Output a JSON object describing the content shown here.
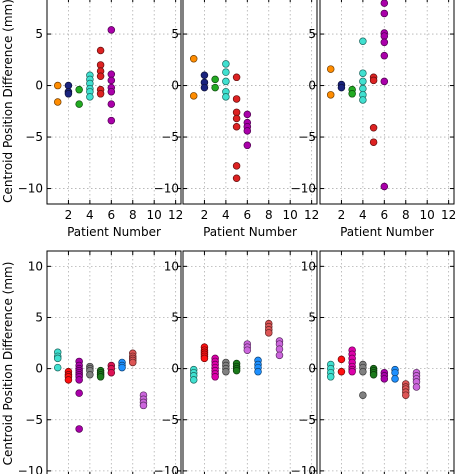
{
  "figure": {
    "ylabel": "Centroid Position Difference (mm)",
    "xlabel": "Patient Number"
  },
  "chart_data": [
    {
      "type": "scatter",
      "row": 0,
      "col": 0,
      "xlabel": "Patient Number",
      "ylabel": "Centroid Position Difference (mm)",
      "xlim": [
        0,
        12.5
      ],
      "ylim": [
        -11.5,
        8.5
      ],
      "xticks": [
        2,
        4,
        6,
        8,
        10,
        12
      ],
      "yticks": [
        -10,
        -5,
        0,
        5
      ],
      "grid": true,
      "series": [
        {
          "color": "#ff8c00",
          "x": [
            1,
            1
          ],
          "y": [
            0.0,
            -1.6
          ]
        },
        {
          "color": "#1a237e",
          "x": [
            2,
            2,
            2
          ],
          "y": [
            0.0,
            -0.6,
            -0.8
          ]
        },
        {
          "color": "#22aa22",
          "x": [
            3,
            3
          ],
          "y": [
            -0.4,
            -1.8
          ]
        },
        {
          "color": "#40e0d0",
          "x": [
            4,
            4,
            4,
            4,
            4,
            4
          ],
          "y": [
            1.0,
            0.6,
            0.2,
            -0.3,
            -0.6,
            -1.1
          ]
        },
        {
          "color": "#dd2222",
          "x": [
            5,
            5,
            5,
            5,
            5,
            5
          ],
          "y": [
            3.4,
            2.0,
            1.4,
            0.9,
            -0.4,
            -0.8
          ]
        },
        {
          "color": "#aa00aa",
          "x": [
            6,
            6,
            6,
            6,
            6,
            6,
            6
          ],
          "y": [
            5.4,
            1.1,
            0.5,
            -0.2,
            -0.6,
            -1.8,
            -3.4
          ]
        }
      ]
    },
    {
      "type": "scatter",
      "row": 0,
      "col": 1,
      "xlabel": "Patient Number",
      "xlim": [
        0,
        12.5
      ],
      "ylim": [
        -11.5,
        8.5
      ],
      "xticks": [
        2,
        4,
        6,
        8,
        10,
        12
      ],
      "yticks": [
        -10,
        -5,
        0,
        5
      ],
      "grid": true,
      "series": [
        {
          "color": "#ff8c00",
          "x": [
            1,
            1
          ],
          "y": [
            2.6,
            -1.0
          ]
        },
        {
          "color": "#1a237e",
          "x": [
            2,
            2,
            2
          ],
          "y": [
            1.0,
            0.3,
            -0.2
          ]
        },
        {
          "color": "#22aa22",
          "x": [
            3,
            3
          ],
          "y": [
            0.6,
            -0.2
          ]
        },
        {
          "color": "#40e0d0",
          "x": [
            4,
            4,
            4,
            4,
            4
          ],
          "y": [
            2.1,
            1.3,
            0.4,
            -0.6,
            -1.1
          ]
        },
        {
          "color": "#dd2222",
          "x": [
            5,
            5,
            5,
            5,
            5,
            5,
            5
          ],
          "y": [
            0.8,
            -1.3,
            -2.6,
            -3.2,
            -4.0,
            -7.8,
            -9.0
          ]
        },
        {
          "color": "#aa00aa",
          "x": [
            6,
            6,
            6,
            6,
            6
          ],
          "y": [
            -2.8,
            -3.6,
            -4.0,
            -4.4,
            -5.8
          ]
        }
      ]
    },
    {
      "type": "scatter",
      "row": 0,
      "col": 2,
      "xlabel": "Patient Number",
      "xlim": [
        0,
        12.5
      ],
      "ylim": [
        -11.5,
        8.5
      ],
      "xticks": [
        2,
        4,
        6,
        8,
        10,
        12
      ],
      "yticks": [
        -10,
        -5,
        0,
        5
      ],
      "grid": true,
      "series": [
        {
          "color": "#ff8c00",
          "x": [
            1,
            1
          ],
          "y": [
            1.6,
            -0.9
          ]
        },
        {
          "color": "#1a237e",
          "x": [
            2,
            2
          ],
          "y": [
            0.1,
            -0.2
          ]
        },
        {
          "color": "#22aa22",
          "x": [
            3,
            3
          ],
          "y": [
            -0.4,
            -0.8
          ]
        },
        {
          "color": "#40e0d0",
          "x": [
            4,
            4,
            4,
            4,
            4,
            4
          ],
          "y": [
            4.3,
            1.2,
            0.4,
            -0.3,
            -0.9,
            -1.4
          ]
        },
        {
          "color": "#dd2222",
          "x": [
            5,
            5,
            5,
            5
          ],
          "y": [
            0.8,
            0.5,
            -4.1,
            -5.5
          ]
        },
        {
          "color": "#aa00aa",
          "x": [
            6,
            6,
            6,
            6,
            6,
            6,
            6,
            6
          ],
          "y": [
            8.0,
            7.0,
            5.1,
            4.8,
            4.2,
            2.9,
            0.4,
            -9.8
          ]
        }
      ]
    },
    {
      "type": "scatter",
      "row": 1,
      "col": 0,
      "ylabel": "Centroid Position Difference (mm)",
      "xlim": [
        0,
        12.5
      ],
      "ylim": [
        -10.5,
        11.5
      ],
      "yticks": [
        -10,
        -5,
        0,
        5,
        10
      ],
      "grid": true,
      "series": [
        {
          "color": "#40e0d0",
          "x": [
            1,
            1,
            1,
            1
          ],
          "y": [
            1.6,
            1.2,
            1.0,
            0.1
          ]
        },
        {
          "color": "#ff1111",
          "x": [
            2,
            2,
            2,
            2
          ],
          "y": [
            -0.3,
            -0.6,
            -0.8,
            -1.1
          ]
        },
        {
          "color": "#aa00aa",
          "x": [
            3,
            3,
            3,
            3,
            3,
            3,
            3,
            3,
            3,
            3
          ],
          "y": [
            0.7,
            0.3,
            0.0,
            -0.2,
            -0.4,
            -0.6,
            -0.8,
            -1.1,
            -2.4,
            -5.9
          ]
        },
        {
          "color": "#808080",
          "x": [
            4,
            4,
            4,
            4
          ],
          "y": [
            0.2,
            0.0,
            -0.2,
            -0.6
          ]
        },
        {
          "color": "#1b7a1b",
          "x": [
            5,
            5,
            5,
            5
          ],
          "y": [
            -0.2,
            -0.4,
            -0.6,
            -0.8
          ]
        },
        {
          "color": "#dd1155",
          "x": [
            6,
            6,
            6
          ],
          "y": [
            0.3,
            0.0,
            -0.4
          ]
        },
        {
          "color": "#1e90ff",
          "x": [
            7,
            7,
            7
          ],
          "y": [
            0.6,
            0.3,
            0.1
          ]
        },
        {
          "color": "#dd5555",
          "x": [
            8,
            8,
            8,
            8,
            8
          ],
          "y": [
            1.5,
            1.2,
            1.0,
            0.8,
            0.6
          ]
        },
        {
          "color": "#cc66dd",
          "x": [
            9,
            9,
            9,
            9
          ],
          "y": [
            -2.6,
            -3.0,
            -3.3,
            -3.6
          ]
        }
      ]
    },
    {
      "type": "scatter",
      "row": 1,
      "col": 1,
      "xlim": [
        0,
        12.5
      ],
      "ylim": [
        -10.5,
        11.5
      ],
      "yticks": [
        -10,
        -5,
        0,
        5,
        10
      ],
      "grid": true,
      "series": [
        {
          "color": "#40e0d0",
          "x": [
            1,
            1,
            1,
            1
          ],
          "y": [
            -0.1,
            -0.4,
            -0.7,
            -1.1
          ]
        },
        {
          "color": "#ff1111",
          "x": [
            2,
            2,
            2,
            2,
            2,
            2
          ],
          "y": [
            2.1,
            1.8,
            1.6,
            1.4,
            1.2,
            1.0
          ]
        },
        {
          "color": "#dd00aa",
          "x": [
            3,
            3,
            3,
            3,
            3,
            3,
            3
          ],
          "y": [
            1.0,
            0.7,
            0.4,
            0.1,
            -0.2,
            -0.5,
            -0.8
          ]
        },
        {
          "color": "#808080",
          "x": [
            4,
            4,
            4,
            4
          ],
          "y": [
            0.6,
            0.3,
            0.0,
            -0.3
          ]
        },
        {
          "color": "#1b7a1b",
          "x": [
            5,
            5,
            5,
            5
          ],
          "y": [
            0.5,
            0.2,
            0.0,
            -0.2
          ]
        },
        {
          "color": "#cc66dd",
          "x": [
            6,
            6,
            6
          ],
          "y": [
            2.4,
            2.1,
            1.8
          ]
        },
        {
          "color": "#1e90ff",
          "x": [
            7,
            7,
            7,
            7
          ],
          "y": [
            0.8,
            0.4,
            0.1,
            -0.3
          ]
        },
        {
          "color": "#dd5555",
          "x": [
            8,
            8,
            8,
            8
          ],
          "y": [
            4.4,
            4.1,
            3.8,
            3.5
          ]
        },
        {
          "color": "#cc66dd",
          "x": [
            9,
            9,
            9,
            9
          ],
          "y": [
            2.7,
            2.4,
            1.9,
            1.3
          ]
        }
      ]
    },
    {
      "type": "scatter",
      "row": 1,
      "col": 2,
      "xlim": [
        0,
        12.5
      ],
      "ylim": [
        -10.5,
        11.5
      ],
      "yticks": [
        -10,
        -5,
        0,
        5,
        10
      ],
      "grid": true,
      "series": [
        {
          "color": "#40e0d0",
          "x": [
            1,
            1,
            1,
            1
          ],
          "y": [
            0.4,
            0.0,
            -0.4,
            -0.8
          ]
        },
        {
          "color": "#ff1111",
          "x": [
            2,
            2
          ],
          "y": [
            0.9,
            -0.3
          ]
        },
        {
          "color": "#dd00aa",
          "x": [
            3,
            3,
            3,
            3,
            3,
            3,
            3
          ],
          "y": [
            1.8,
            1.4,
            1.0,
            0.6,
            0.2,
            -0.1,
            -0.3
          ]
        },
        {
          "color": "#808080",
          "x": [
            4,
            4,
            4,
            4
          ],
          "y": [
            0.4,
            0.1,
            -0.3,
            -2.6
          ]
        },
        {
          "color": "#1b7a1b",
          "x": [
            5,
            5,
            5,
            5
          ],
          "y": [
            0.0,
            -0.2,
            -0.4,
            -0.6
          ]
        },
        {
          "color": "#aa00aa",
          "x": [
            6,
            6,
            6
          ],
          "y": [
            -0.4,
            -0.7,
            -1.0
          ]
        },
        {
          "color": "#1e90ff",
          "x": [
            7,
            7,
            7
          ],
          "y": [
            -0.1,
            -0.4,
            -1.0
          ]
        },
        {
          "color": "#dd5555",
          "x": [
            8,
            8,
            8,
            8,
            8
          ],
          "y": [
            -1.5,
            -1.8,
            -2.0,
            -2.3,
            -2.6
          ]
        },
        {
          "color": "#cc66dd",
          "x": [
            9,
            9,
            9,
            9,
            9
          ],
          "y": [
            -0.4,
            -0.7,
            -1.0,
            -1.3,
            -1.8
          ]
        }
      ]
    }
  ]
}
